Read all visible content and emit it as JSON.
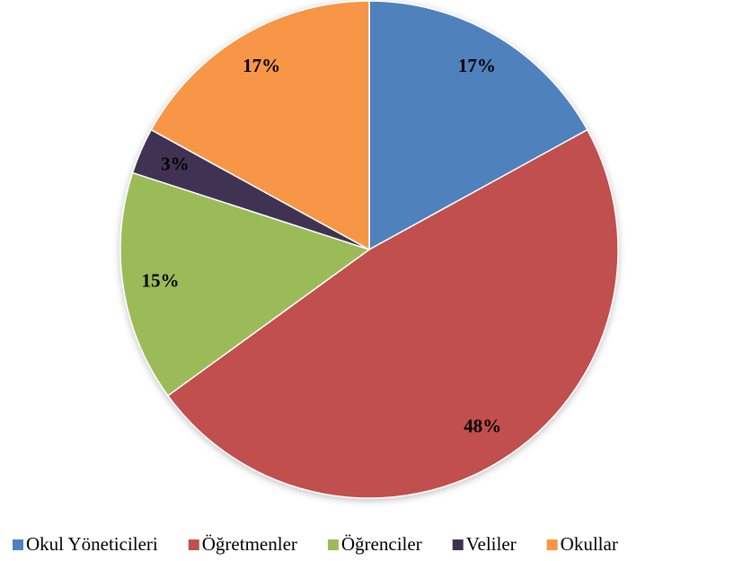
{
  "chart_data": {
    "type": "pie",
    "categories": [
      "Okul Yöneticileri",
      "Öğretmenler",
      "Öğrenciler",
      "Veliler",
      "Okullar"
    ],
    "values": [
      17,
      48,
      15,
      3,
      17
    ],
    "value_labels": [
      "17%",
      "48%",
      "15%",
      "3%",
      "17%"
    ],
    "colors": [
      "#4f81bd",
      "#c0504d",
      "#9bbb59",
      "#403152",
      "#f79646"
    ],
    "legend": "bottom"
  }
}
